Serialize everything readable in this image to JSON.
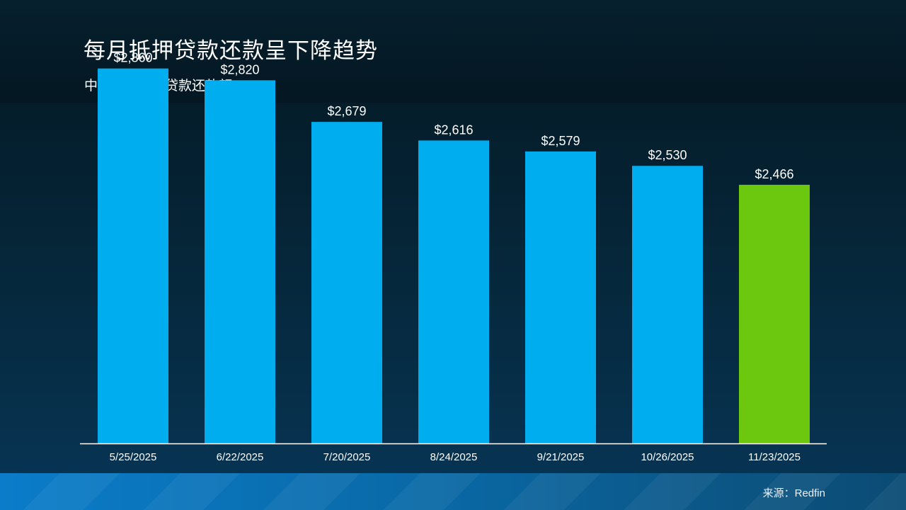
{
  "header": {
    "title": "每月抵押贷款还款呈下降趋势",
    "subtitle": "中位数月抵押贷款还款额"
  },
  "footer": {
    "source": "来源：Redfin"
  },
  "colors": {
    "bar": "#00aeef",
    "highlight_bar": "#6cc70f",
    "axis": "#ffffff",
    "text": "#ffffff"
  },
  "chart_data": {
    "type": "bar",
    "title": "每月抵押贷款还款呈下降趋势",
    "subtitle": "中位数月抵押贷款还款额",
    "categories": [
      "5/25/2025",
      "6/22/2025",
      "7/20/2025",
      "8/24/2025",
      "9/21/2025",
      "10/26/2025",
      "11/23/2025"
    ],
    "values": [
      2860,
      2820,
      2679,
      2616,
      2579,
      2530,
      2466
    ],
    "data_labels": [
      "$2,860",
      "$2,820",
      "$2,679",
      "$2,616",
      "$2,579",
      "$2,530",
      "$2,466"
    ],
    "highlight_index": 6,
    "xlabel": "",
    "ylabel": "",
    "ylim": [
      1590,
      2900
    ],
    "grid": false,
    "legend": "none"
  }
}
